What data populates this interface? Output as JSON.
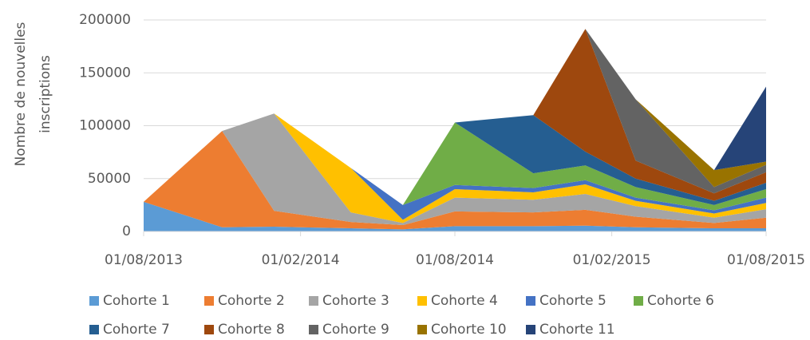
{
  "chart_data": {
    "type": "stacked-area",
    "ylabel": [
      "Nombre de nouvelles",
      "inscriptions"
    ],
    "x": [
      "01/08/2013",
      "01/11/2013",
      "01/01/2014",
      "01/04/2014",
      "01/06/2014",
      "01/08/2014",
      "01/11/2014",
      "01/01/2015",
      "01/03/2015",
      "01/06/2015",
      "01/08/2015"
    ],
    "xlim": [
      "01/08/2013",
      "01/08/2015"
    ],
    "xticks": [
      "01/08/2013",
      "01/02/2014",
      "01/08/2014",
      "01/02/2015",
      "01/08/2015"
    ],
    "ylim": [
      0,
      200000
    ],
    "yticks": [
      0,
      50000,
      100000,
      150000,
      200000
    ],
    "grid": true,
    "legend": "bottom",
    "series": [
      {
        "name": "Cohorte 1",
        "color": "#5b9bd5",
        "values": [
          28000,
          4000,
          4500,
          3000,
          2000,
          5000,
          5000,
          5500,
          4000,
          3000,
          3000
        ]
      },
      {
        "name": "Cohorte 2",
        "color": "#ed7d31",
        "values": [
          0,
          91000,
          15000,
          6000,
          4000,
          14000,
          13000,
          15000,
          10000,
          5000,
          10000
        ]
      },
      {
        "name": "Cohorte 3",
        "color": "#a5a5a5",
        "values": [
          0,
          0,
          92000,
          9000,
          2000,
          13000,
          12000,
          15000,
          10000,
          5000,
          8000
        ]
      },
      {
        "name": "Cohorte 4",
        "color": "#ffc000",
        "values": [
          0,
          0,
          0,
          42000,
          3000,
          8000,
          7000,
          9000,
          5000,
          4000,
          6000
        ]
      },
      {
        "name": "Cohorte 5",
        "color": "#4472c4",
        "values": [
          0,
          0,
          0,
          0,
          14000,
          4000,
          4000,
          4000,
          3000,
          3000,
          5000
        ]
      },
      {
        "name": "Cohorte 6",
        "color": "#70ad47",
        "values": [
          0,
          0,
          0,
          0,
          0,
          59000,
          14000,
          14000,
          10000,
          5000,
          8000
        ]
      },
      {
        "name": "Cohorte 7",
        "color": "#255e91",
        "values": [
          0,
          0,
          0,
          0,
          0,
          0,
          55000,
          13000,
          8000,
          4000,
          6000
        ]
      },
      {
        "name": "Cohorte 8",
        "color": "#9e480e",
        "values": [
          0,
          0,
          0,
          0,
          0,
          0,
          0,
          116000,
          17000,
          7000,
          10000
        ]
      },
      {
        "name": "Cohorte 9",
        "color": "#636363",
        "values": [
          0,
          0,
          0,
          0,
          0,
          0,
          0,
          0,
          58000,
          6000,
          7000
        ]
      },
      {
        "name": "Cohorte 10",
        "color": "#997300",
        "values": [
          0,
          0,
          0,
          0,
          0,
          0,
          0,
          0,
          0,
          16000,
          3000
        ]
      },
      {
        "name": "Cohorte 11",
        "color": "#264478",
        "values": [
          0,
          0,
          0,
          0,
          0,
          0,
          0,
          0,
          0,
          0,
          71000
        ]
      }
    ]
  }
}
